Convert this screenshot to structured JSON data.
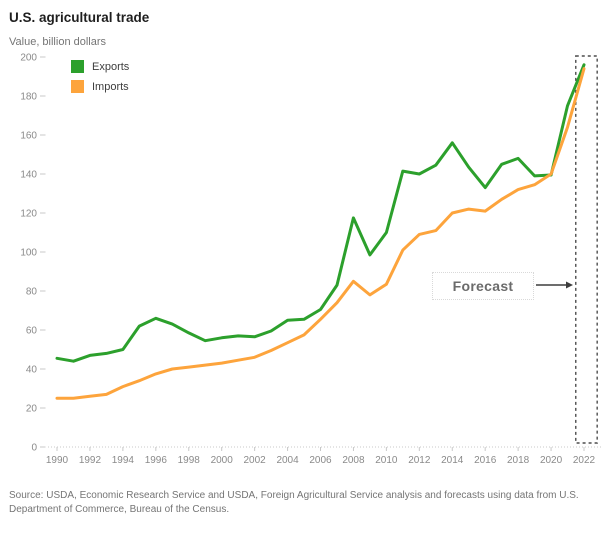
{
  "title": "U.S. agricultural trade",
  "y_axis_unit": "Value, billion dollars",
  "source": "Source: USDA, Economic Research Service and USDA, Foreign Agricultural Service analysis and forecasts using data from U.S. Department of Commerce, Bureau of the Census.",
  "colors": {
    "exports": "#2ca02c",
    "imports": "#fda43c",
    "axis_text": "#8a8a8a",
    "tick": "#c8c8c8",
    "forecast_box_border": "#4d4d4d",
    "arrow": "#3d3d3d"
  },
  "chart_data": {
    "type": "line",
    "title": "U.S. agricultural trade",
    "ylabel": "Value, billion dollars",
    "xlabel": "",
    "grid": false,
    "legend_position": "top-left",
    "ylim": [
      0,
      200
    ],
    "ytick_step": 20,
    "xticks": [
      1990,
      1992,
      1994,
      1996,
      1998,
      2000,
      2002,
      2004,
      2006,
      2008,
      2010,
      2012,
      2014,
      2016,
      2018,
      2020,
      2022
    ],
    "x": [
      1990,
      1991,
      1992,
      1993,
      1994,
      1995,
      1996,
      1997,
      1998,
      1999,
      2000,
      2001,
      2002,
      2003,
      2004,
      2005,
      2006,
      2007,
      2008,
      2009,
      2010,
      2011,
      2012,
      2013,
      2014,
      2015,
      2016,
      2017,
      2018,
      2019,
      2020,
      2021,
      2022
    ],
    "series": [
      {
        "name": "Exports",
        "color": "#2ca02c",
        "values": [
          45.5,
          44,
          47,
          48,
          50,
          62,
          66,
          63,
          58.5,
          54.5,
          56,
          57,
          56.5,
          59.5,
          65,
          65.5,
          70.5,
          83,
          117.5,
          98.5,
          110,
          141.5,
          140,
          144.5,
          156,
          143.5,
          133,
          145,
          148,
          139,
          139.5,
          175,
          196
        ]
      },
      {
        "name": "Imports",
        "color": "#fda43c",
        "values": [
          25,
          25,
          26,
          27,
          31,
          34,
          37.5,
          40,
          41,
          42,
          43,
          44.5,
          46,
          49.5,
          53.5,
          57.5,
          65.5,
          74,
          85,
          78,
          83.5,
          101,
          109,
          111,
          120,
          122,
          121,
          127,
          132,
          134.5,
          140,
          164,
          194
        ]
      }
    ],
    "forecast": {
      "label": "Forecast",
      "x_from": 2021.5,
      "x_to": 2022.8
    }
  }
}
